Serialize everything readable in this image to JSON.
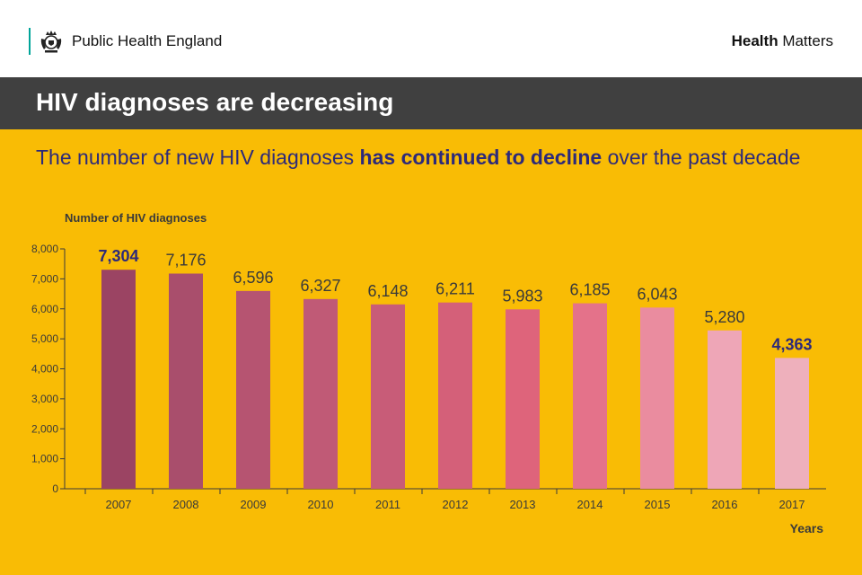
{
  "header": {
    "org_name": "Public Health England",
    "brand_bold": "Health",
    "brand_light": " Matters"
  },
  "title": "HIV diagnoses are decreasing",
  "subtitle": {
    "before": "The number of new HIV diagnoses ",
    "emphasis": "has continued to decline",
    "after": " over the past decade"
  },
  "colors": {
    "background": "#f9bc05",
    "title_bar": "#404040",
    "accent_text": "#2d2a7a",
    "bars": [
      "#9b4463",
      "#a94e6c",
      "#b65471",
      "#c05a76",
      "#c85c78",
      "#d46079",
      "#de647b",
      "#e4728a",
      "#ea8c9f",
      "#eea6b7",
      "#eeb0bc"
    ]
  },
  "chart_data": {
    "type": "bar",
    "title": "",
    "ylabel": "Number of HIV diagnoses",
    "xlabel": "Years",
    "categories": [
      "2007",
      "2008",
      "2009",
      "2010",
      "2011",
      "2012",
      "2013",
      "2014",
      "2015",
      "2016",
      "2017"
    ],
    "values": [
      7304,
      7176,
      6596,
      6327,
      6148,
      6211,
      5983,
      6185,
      6043,
      5280,
      4363
    ],
    "value_labels": [
      "7,304",
      "7,176",
      "6,596",
      "6,327",
      "6,148",
      "6,211",
      "5,983",
      "6,185",
      "6,043",
      "5,280",
      "4,363"
    ],
    "highlighted": [
      true,
      false,
      false,
      false,
      false,
      false,
      false,
      false,
      false,
      false,
      true
    ],
    "ylim": [
      0,
      8000
    ],
    "yticks": [
      0,
      1000,
      2000,
      3000,
      4000,
      5000,
      6000,
      7000,
      8000
    ],
    "ytick_labels": [
      "0",
      "1,000",
      "2,000",
      "3,000",
      "4,000",
      "5,000",
      "6,000",
      "7,000",
      "8,000"
    ],
    "grid": false
  }
}
